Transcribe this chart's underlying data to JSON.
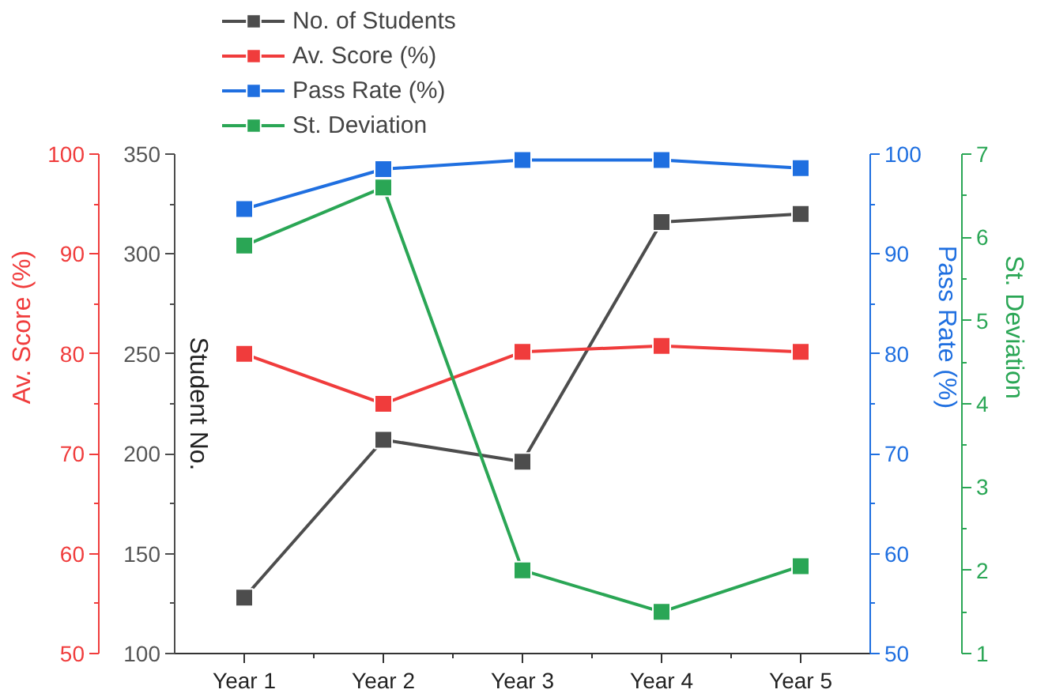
{
  "chart_data": [
    {
      "type": "line",
      "categories": [
        "Year 1",
        "Year 2",
        "Year 3",
        "Year 4",
        "Year 5"
      ],
      "ylabel": "Student No.",
      "y2label": "Pass Rate (%)",
      "ylim": [
        100,
        350
      ],
      "yticks": [
        100,
        150,
        200,
        250,
        300,
        350
      ],
      "y2lim": [
        50,
        100
      ],
      "y2ticks": [
        50,
        60,
        70,
        80,
        90,
        100
      ],
      "marker": "square",
      "legend": "top",
      "series": [
        {
          "name": "No. of Students",
          "color": "#4d4d4d",
          "values": [
            128,
            207,
            196,
            316,
            320
          ]
        },
        {
          "name": "Pass Rate (%)",
          "color": "#1f6fe0",
          "axis": "y2",
          "values": [
            94.5,
            98.5,
            99.4,
            99.4,
            98.6
          ]
        }
      ]
    },
    {
      "type": "line",
      "categories": [
        null,
        null,
        null,
        null,
        null
      ],
      "ylabel": "Av. Score (%)",
      "y2label": "St. Deviation",
      "ylim": [
        50,
        100
      ],
      "yticks": [
        50,
        60,
        70,
        80,
        90,
        100
      ],
      "y2lim": [
        1,
        7
      ],
      "y2ticks": [
        1,
        2,
        3,
        4,
        5,
        6,
        7
      ],
      "marker": "square",
      "legend": "top",
      "tick_labels": "y",
      "series": [
        {
          "name": "Av. Score (%)",
          "color": "#f03c3c",
          "values": [
            80,
            75,
            80.2,
            80.8,
            80.2
          ]
        },
        {
          "name": "St. Deviation",
          "color": "#2aa655",
          "axis": "y2",
          "values": [
            5.9,
            6.6,
            2.0,
            1.5,
            2.05
          ]
        }
      ]
    }
  ]
}
